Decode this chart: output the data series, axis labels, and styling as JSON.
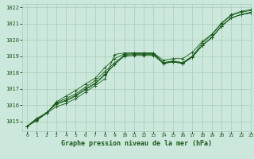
{
  "title": "Graphe pression niveau de la mer (hPa)",
  "bg_color": "#cce8dc",
  "line_color": "#1a5c1a",
  "grid_color": "#a8ccb8",
  "ylim": [
    1014.4,
    1022.2
  ],
  "xlim": [
    -0.5,
    23.0
  ],
  "yticks": [
    1015,
    1016,
    1017,
    1018,
    1019,
    1020,
    1021,
    1022
  ],
  "xticks": [
    0,
    1,
    2,
    3,
    4,
    5,
    6,
    7,
    8,
    9,
    10,
    11,
    12,
    13,
    14,
    15,
    16,
    17,
    18,
    19,
    20,
    21,
    22,
    23
  ],
  "series": [
    [
      1014.7,
      1015.2,
      1015.5,
      1015.9,
      1016.1,
      1016.4,
      1016.8,
      1017.2,
      1017.6,
      1019.1,
      1019.2,
      1019.2,
      1019.2,
      1019.2,
      1018.6,
      1018.7,
      1018.6,
      1019.0,
      1019.8,
      1020.3,
      1021.0,
      1021.5,
      1021.7,
      1021.8
    ],
    [
      1014.7,
      1015.15,
      1015.55,
      1016.05,
      1016.25,
      1016.55,
      1016.95,
      1017.3,
      1017.85,
      1018.5,
      1019.1,
      1019.15,
      1019.15,
      1019.15,
      1018.55,
      1018.65,
      1018.55,
      1018.95,
      1019.65,
      1020.15,
      1020.85,
      1021.35,
      1021.55,
      1021.65
    ],
    [
      1014.7,
      1015.1,
      1015.5,
      1016.1,
      1016.3,
      1016.6,
      1017.0,
      1017.35,
      1017.9,
      1018.5,
      1019.0,
      1019.05,
      1019.05,
      1019.05,
      1018.55,
      1018.65,
      1018.55,
      1018.95,
      1019.65,
      1020.15,
      1020.85,
      1021.35,
      1021.55,
      1021.65
    ],
    [
      1014.7,
      1015.1,
      1015.5,
      1016.15,
      1016.4,
      1016.7,
      1017.1,
      1017.5,
      1018.05,
      1018.6,
      1019.05,
      1019.1,
      1019.1,
      1019.1,
      1018.6,
      1018.7,
      1018.6,
      1019.0,
      1019.65,
      1020.15,
      1020.85,
      1021.35,
      1021.55,
      1021.7
    ],
    [
      1014.7,
      1015.05,
      1015.5,
      1016.2,
      1016.55,
      1016.9,
      1017.3,
      1017.65,
      1018.3,
      1018.85,
      1019.15,
      1019.2,
      1019.2,
      1019.2,
      1018.75,
      1018.85,
      1018.85,
      1019.25,
      1019.9,
      1020.35,
      1021.05,
      1021.55,
      1021.75,
      1021.85
    ]
  ]
}
